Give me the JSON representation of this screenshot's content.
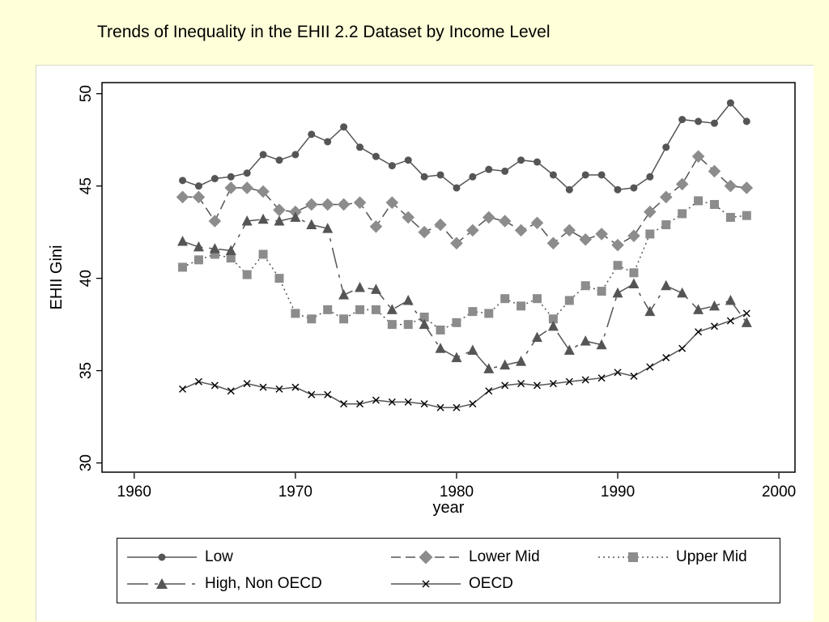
{
  "title": "Trends of Inequality in the EHII 2.2 Dataset by Income Level",
  "chart_data": {
    "type": "line",
    "title": "Trends of Inequality in the EHII 2.2 Dataset by Income Level",
    "xlabel": "year",
    "ylabel": "EHII Gini",
    "xlim": [
      1958,
      2001
    ],
    "ylim": [
      29.5,
      50.6
    ],
    "xticks": [
      1960,
      1970,
      1980,
      1990,
      2000
    ],
    "yticks": [
      30,
      35,
      40,
      45,
      50
    ],
    "grid": false,
    "legend_position": "bottom",
    "colors": {
      "dark": "#555555",
      "gray": "#8c8c8c",
      "black": "#000000"
    },
    "series": [
      {
        "name": "Low",
        "marker": "circle",
        "dash": "solid",
        "color": "#555555",
        "x": [
          1963,
          1964,
          1965,
          1966,
          1967,
          1968,
          1969,
          1970,
          1971,
          1972,
          1973,
          1974,
          1975,
          1976,
          1977,
          1978,
          1979,
          1980,
          1981,
          1982,
          1983,
          1984,
          1985,
          1986,
          1987,
          1988,
          1989,
          1990,
          1991,
          1992,
          1993,
          1994,
          1995,
          1996,
          1997,
          1998
        ],
        "y": [
          45.3,
          45.0,
          45.4,
          45.5,
          45.7,
          46.7,
          46.4,
          46.7,
          47.8,
          47.4,
          48.2,
          47.1,
          46.6,
          46.1,
          46.4,
          45.5,
          45.6,
          44.9,
          45.5,
          45.9,
          45.8,
          46.4,
          46.3,
          45.6,
          44.8,
          45.6,
          45.6,
          44.8,
          44.9,
          45.5,
          47.1,
          48.6,
          48.5,
          48.4,
          49.5,
          48.5
        ]
      },
      {
        "name": "Lower Mid",
        "marker": "diamond",
        "dash": "dash",
        "color": "#8c8c8c",
        "x": [
          1963,
          1964,
          1965,
          1966,
          1967,
          1968,
          1969,
          1970,
          1971,
          1972,
          1973,
          1974,
          1975,
          1976,
          1977,
          1978,
          1979,
          1980,
          1981,
          1982,
          1983,
          1984,
          1985,
          1986,
          1987,
          1988,
          1989,
          1990,
          1991,
          1992,
          1993,
          1994,
          1995,
          1996,
          1997,
          1998
        ],
        "y": [
          44.4,
          44.4,
          43.1,
          44.9,
          44.9,
          44.7,
          43.7,
          43.6,
          44.0,
          44.0,
          44.0,
          44.1,
          42.8,
          44.1,
          43.3,
          42.5,
          42.9,
          41.9,
          42.6,
          43.3,
          43.1,
          42.6,
          43.0,
          41.9,
          42.6,
          42.1,
          42.4,
          41.8,
          42.3,
          43.6,
          44.4,
          45.1,
          46.6,
          45.8,
          45.0,
          44.9
        ]
      },
      {
        "name": "Upper Mid",
        "marker": "square",
        "dash": "dot",
        "color": "#8c8c8c",
        "x": [
          1963,
          1964,
          1965,
          1966,
          1967,
          1968,
          1969,
          1970,
          1971,
          1972,
          1973,
          1974,
          1975,
          1976,
          1977,
          1978,
          1979,
          1980,
          1981,
          1982,
          1983,
          1984,
          1985,
          1986,
          1987,
          1988,
          1989,
          1990,
          1991,
          1992,
          1993,
          1994,
          1995,
          1996,
          1997,
          1998
        ],
        "y": [
          40.6,
          41.0,
          41.3,
          41.1,
          40.2,
          41.3,
          40.0,
          38.1,
          37.8,
          38.3,
          37.8,
          38.3,
          38.3,
          37.5,
          37.5,
          37.9,
          37.2,
          37.6,
          38.2,
          38.1,
          38.9,
          38.5,
          38.9,
          37.8,
          38.8,
          39.6,
          39.3,
          40.7,
          40.3,
          42.4,
          42.9,
          43.5,
          44.2,
          44.0,
          43.3,
          43.4
        ]
      },
      {
        "name": "High, Non OECD",
        "marker": "triangle",
        "dash": "longdash",
        "color": "#555555",
        "x": [
          1963,
          1964,
          1965,
          1966,
          1967,
          1968,
          1969,
          1970,
          1971,
          1972,
          1973,
          1974,
          1975,
          1976,
          1977,
          1978,
          1979,
          1980,
          1981,
          1982,
          1983,
          1984,
          1985,
          1986,
          1987,
          1988,
          1989,
          1990,
          1991,
          1992,
          1993,
          1994,
          1995,
          1996,
          1997,
          1998
        ],
        "y": [
          42.0,
          41.7,
          41.6,
          41.5,
          43.1,
          43.2,
          43.1,
          43.3,
          42.9,
          42.7,
          39.1,
          39.5,
          39.4,
          38.3,
          38.8,
          37.5,
          36.2,
          35.7,
          36.1,
          35.1,
          35.3,
          35.5,
          36.8,
          37.4,
          36.1,
          36.6,
          36.4,
          39.2,
          39.7,
          38.2,
          39.6,
          39.2,
          38.3,
          38.5,
          38.8,
          37.6
        ]
      },
      {
        "name": "OECD",
        "marker": "x",
        "dash": "solid",
        "color": "#555555",
        "x": [
          1963,
          1964,
          1965,
          1966,
          1967,
          1968,
          1969,
          1970,
          1971,
          1972,
          1973,
          1974,
          1975,
          1976,
          1977,
          1978,
          1979,
          1980,
          1981,
          1982,
          1983,
          1984,
          1985,
          1986,
          1987,
          1988,
          1989,
          1990,
          1991,
          1992,
          1993,
          1994,
          1995,
          1996,
          1997,
          1998
        ],
        "y": [
          34.0,
          34.4,
          34.2,
          33.9,
          34.3,
          34.1,
          34.0,
          34.1,
          33.7,
          33.7,
          33.2,
          33.2,
          33.4,
          33.3,
          33.3,
          33.2,
          33.0,
          33.0,
          33.2,
          33.9,
          34.2,
          34.3,
          34.2,
          34.3,
          34.4,
          34.5,
          34.6,
          34.9,
          34.7,
          35.2,
          35.7,
          36.2,
          37.1,
          37.4,
          37.7,
          38.1
        ]
      }
    ]
  }
}
